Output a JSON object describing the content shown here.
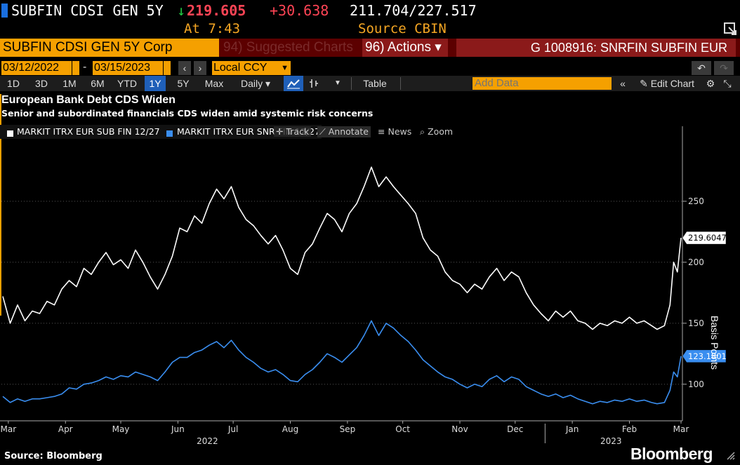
{
  "quote": {
    "ticker": "SUBFIN CDSI GEN 5Y",
    "arrow": "↓",
    "last": "219.605",
    "change": "+30.638",
    "bid_ask": "211.704/227.517",
    "at_label": "At 7:43",
    "source_label": "Source CBIN"
  },
  "security_bar": {
    "name": "SUBFIN CDSI GEN 5Y Corp",
    "suggested": "94) Suggested Charts",
    "actions": "96) Actions ▾",
    "id": "G 1008916: SNRFIN SUBFIN EUR"
  },
  "date_row": {
    "start": "03/12/2022",
    "end": "03/15/2023",
    "currency": "Local CCY"
  },
  "toolbar": {
    "periods": [
      "1D",
      "3D",
      "1M",
      "6M",
      "YTD",
      "1Y",
      "5Y",
      "Max"
    ],
    "active_period": "1Y",
    "frequency": "Daily ▾",
    "table": "Table",
    "add_data_placeholder": "Add Data",
    "edit_chart": "Edit Chart"
  },
  "chart_buttons": {
    "track": "Track",
    "annotate": "Annotate",
    "news": "News",
    "zoom": "Zoom"
  },
  "colors": {
    "series_sub": "#ffffff",
    "series_snr": "#3a8ef0",
    "accent_orange": "#f5a000",
    "down_green": "#22cc44",
    "change_red": "#ff4455"
  },
  "chart_data": {
    "type": "line",
    "title": "European Bank Debt CDS Widen",
    "subtitle": "Senior and subordinated financials CDS widen amid systemic risk concerns",
    "ylabel": "Basis Points",
    "ylim": [
      70,
      300
    ],
    "yticks": [
      100,
      150,
      200,
      250
    ],
    "xlim": [
      "2022-03-12",
      "2023-03-15"
    ],
    "xticks": [
      {
        "label": "Mar",
        "date": "2022-03-15"
      },
      {
        "label": "Apr",
        "date": "2022-04-15"
      },
      {
        "label": "May",
        "date": "2022-05-15"
      },
      {
        "label": "Jun",
        "date": "2022-06-15"
      },
      {
        "label": "Jul",
        "date": "2022-07-15"
      },
      {
        "label": "Aug",
        "date": "2022-08-15"
      },
      {
        "label": "Sep",
        "date": "2022-09-15"
      },
      {
        "label": "Oct",
        "date": "2022-10-15"
      },
      {
        "label": "Nov",
        "date": "2022-11-15"
      },
      {
        "label": "Dec",
        "date": "2022-12-15"
      },
      {
        "label": "Jan",
        "date": "2023-01-15"
      },
      {
        "label": "Feb",
        "date": "2023-02-15"
      },
      {
        "label": "Mar",
        "date": "2023-03-15"
      }
    ],
    "year_labels": [
      {
        "label": "2022",
        "date": "2022-07-01"
      },
      {
        "label": "2023",
        "date": "2023-02-05"
      }
    ],
    "series": [
      {
        "name": "MARKIT ITRX EUR SUB FIN 12/27",
        "last_label": "219.6047",
        "points": [
          [
            "2022-03-12",
            172
          ],
          [
            "2022-03-16",
            150
          ],
          [
            "2022-03-20",
            165
          ],
          [
            "2022-03-24",
            152
          ],
          [
            "2022-03-28",
            160
          ],
          [
            "2022-04-01",
            158
          ],
          [
            "2022-04-05",
            168
          ],
          [
            "2022-04-09",
            165
          ],
          [
            "2022-04-13",
            178
          ],
          [
            "2022-04-17",
            185
          ],
          [
            "2022-04-21",
            180
          ],
          [
            "2022-04-25",
            195
          ],
          [
            "2022-04-29",
            190
          ],
          [
            "2022-05-03",
            200
          ],
          [
            "2022-05-07",
            208
          ],
          [
            "2022-05-11",
            198
          ],
          [
            "2022-05-15",
            202
          ],
          [
            "2022-05-19",
            195
          ],
          [
            "2022-05-23",
            210
          ],
          [
            "2022-05-27",
            200
          ],
          [
            "2022-05-31",
            188
          ],
          [
            "2022-06-04",
            178
          ],
          [
            "2022-06-08",
            190
          ],
          [
            "2022-06-12",
            205
          ],
          [
            "2022-06-16",
            228
          ],
          [
            "2022-06-20",
            225
          ],
          [
            "2022-06-24",
            238
          ],
          [
            "2022-06-28",
            232
          ],
          [
            "2022-07-02",
            248
          ],
          [
            "2022-07-06",
            260
          ],
          [
            "2022-07-10",
            252
          ],
          [
            "2022-07-14",
            262
          ],
          [
            "2022-07-18",
            245
          ],
          [
            "2022-07-22",
            235
          ],
          [
            "2022-07-26",
            230
          ],
          [
            "2022-07-30",
            222
          ],
          [
            "2022-08-03",
            215
          ],
          [
            "2022-08-07",
            222
          ],
          [
            "2022-08-11",
            210
          ],
          [
            "2022-08-15",
            195
          ],
          [
            "2022-08-19",
            190
          ],
          [
            "2022-08-23",
            208
          ],
          [
            "2022-08-27",
            215
          ],
          [
            "2022-08-31",
            228
          ],
          [
            "2022-09-04",
            240
          ],
          [
            "2022-09-08",
            235
          ],
          [
            "2022-09-12",
            225
          ],
          [
            "2022-09-16",
            240
          ],
          [
            "2022-09-20",
            248
          ],
          [
            "2022-09-24",
            262
          ],
          [
            "2022-09-28",
            278
          ],
          [
            "2022-10-02",
            262
          ],
          [
            "2022-10-06",
            270
          ],
          [
            "2022-10-10",
            262
          ],
          [
            "2022-10-14",
            255
          ],
          [
            "2022-10-18",
            248
          ],
          [
            "2022-10-22",
            240
          ],
          [
            "2022-10-26",
            220
          ],
          [
            "2022-10-30",
            210
          ],
          [
            "2022-11-03",
            205
          ],
          [
            "2022-11-07",
            192
          ],
          [
            "2022-11-11",
            185
          ],
          [
            "2022-11-15",
            182
          ],
          [
            "2022-11-19",
            175
          ],
          [
            "2022-11-23",
            182
          ],
          [
            "2022-11-27",
            178
          ],
          [
            "2022-12-01",
            188
          ],
          [
            "2022-12-05",
            195
          ],
          [
            "2022-12-09",
            185
          ],
          [
            "2022-12-13",
            192
          ],
          [
            "2022-12-17",
            188
          ],
          [
            "2022-12-21",
            175
          ],
          [
            "2022-12-25",
            165
          ],
          [
            "2022-12-29",
            158
          ],
          [
            "2023-01-02",
            152
          ],
          [
            "2023-01-06",
            160
          ],
          [
            "2023-01-10",
            155
          ],
          [
            "2023-01-14",
            160
          ],
          [
            "2023-01-18",
            152
          ],
          [
            "2023-01-22",
            150
          ],
          [
            "2023-01-26",
            145
          ],
          [
            "2023-01-30",
            150
          ],
          [
            "2023-02-03",
            148
          ],
          [
            "2023-02-07",
            152
          ],
          [
            "2023-02-11",
            150
          ],
          [
            "2023-02-15",
            155
          ],
          [
            "2023-02-19",
            150
          ],
          [
            "2023-02-23",
            152
          ],
          [
            "2023-02-27",
            148
          ],
          [
            "2023-03-02",
            145
          ],
          [
            "2023-03-06",
            148
          ],
          [
            "2023-03-09",
            165
          ],
          [
            "2023-03-11",
            200
          ],
          [
            "2023-03-13",
            192
          ],
          [
            "2023-03-15",
            220
          ]
        ]
      },
      {
        "name": "MARKIT ITRX EUR SNR FIN 12/27",
        "last_label": "123.1801",
        "points": [
          [
            "2022-03-12",
            90
          ],
          [
            "2022-03-16",
            85
          ],
          [
            "2022-03-20",
            88
          ],
          [
            "2022-03-24",
            86
          ],
          [
            "2022-03-28",
            88
          ],
          [
            "2022-04-01",
            88
          ],
          [
            "2022-04-05",
            89
          ],
          [
            "2022-04-09",
            90
          ],
          [
            "2022-04-13",
            92
          ],
          [
            "2022-04-17",
            97
          ],
          [
            "2022-04-21",
            96
          ],
          [
            "2022-04-25",
            100
          ],
          [
            "2022-04-29",
            101
          ],
          [
            "2022-05-03",
            103
          ],
          [
            "2022-05-07",
            106
          ],
          [
            "2022-05-11",
            104
          ],
          [
            "2022-05-15",
            107
          ],
          [
            "2022-05-19",
            106
          ],
          [
            "2022-05-23",
            110
          ],
          [
            "2022-05-27",
            108
          ],
          [
            "2022-05-31",
            106
          ],
          [
            "2022-06-04",
            103
          ],
          [
            "2022-06-08",
            110
          ],
          [
            "2022-06-12",
            118
          ],
          [
            "2022-06-16",
            122
          ],
          [
            "2022-06-20",
            122
          ],
          [
            "2022-06-24",
            126
          ],
          [
            "2022-06-28",
            128
          ],
          [
            "2022-07-02",
            132
          ],
          [
            "2022-07-06",
            135
          ],
          [
            "2022-07-10",
            130
          ],
          [
            "2022-07-14",
            136
          ],
          [
            "2022-07-18",
            128
          ],
          [
            "2022-07-22",
            122
          ],
          [
            "2022-07-26",
            118
          ],
          [
            "2022-07-30",
            113
          ],
          [
            "2022-08-03",
            110
          ],
          [
            "2022-08-07",
            112
          ],
          [
            "2022-08-11",
            108
          ],
          [
            "2022-08-15",
            103
          ],
          [
            "2022-08-19",
            102
          ],
          [
            "2022-08-23",
            108
          ],
          [
            "2022-08-27",
            112
          ],
          [
            "2022-08-31",
            118
          ],
          [
            "2022-09-04",
            125
          ],
          [
            "2022-09-08",
            122
          ],
          [
            "2022-09-12",
            118
          ],
          [
            "2022-09-16",
            124
          ],
          [
            "2022-09-20",
            130
          ],
          [
            "2022-09-24",
            140
          ],
          [
            "2022-09-28",
            152
          ],
          [
            "2022-10-02",
            140
          ],
          [
            "2022-10-06",
            150
          ],
          [
            "2022-10-10",
            146
          ],
          [
            "2022-10-14",
            140
          ],
          [
            "2022-10-18",
            135
          ],
          [
            "2022-10-22",
            128
          ],
          [
            "2022-10-26",
            120
          ],
          [
            "2022-10-30",
            115
          ],
          [
            "2022-11-03",
            110
          ],
          [
            "2022-11-07",
            106
          ],
          [
            "2022-11-11",
            104
          ],
          [
            "2022-11-15",
            100
          ],
          [
            "2022-11-19",
            97
          ],
          [
            "2022-11-23",
            100
          ],
          [
            "2022-11-27",
            98
          ],
          [
            "2022-12-01",
            104
          ],
          [
            "2022-12-05",
            107
          ],
          [
            "2022-12-09",
            102
          ],
          [
            "2022-12-13",
            106
          ],
          [
            "2022-12-17",
            104
          ],
          [
            "2022-12-21",
            98
          ],
          [
            "2022-12-25",
            95
          ],
          [
            "2022-12-29",
            92
          ],
          [
            "2023-01-02",
            90
          ],
          [
            "2023-01-06",
            92
          ],
          [
            "2023-01-10",
            89
          ],
          [
            "2023-01-14",
            91
          ],
          [
            "2023-01-18",
            88
          ],
          [
            "2023-01-22",
            86
          ],
          [
            "2023-01-26",
            84
          ],
          [
            "2023-01-30",
            86
          ],
          [
            "2023-02-03",
            85
          ],
          [
            "2023-02-07",
            87
          ],
          [
            "2023-02-11",
            86
          ],
          [
            "2023-02-15",
            88
          ],
          [
            "2023-02-19",
            86
          ],
          [
            "2023-02-23",
            87
          ],
          [
            "2023-02-27",
            85
          ],
          [
            "2023-03-02",
            84
          ],
          [
            "2023-03-06",
            85
          ],
          [
            "2023-03-09",
            95
          ],
          [
            "2023-03-11",
            110
          ],
          [
            "2023-03-13",
            106
          ],
          [
            "2023-03-15",
            123
          ]
        ]
      }
    ],
    "grid": "dotted horizontal",
    "legend_position": "top-left"
  },
  "footer": {
    "source": "Source: Bloomberg",
    "brand": "Bloomberg"
  }
}
